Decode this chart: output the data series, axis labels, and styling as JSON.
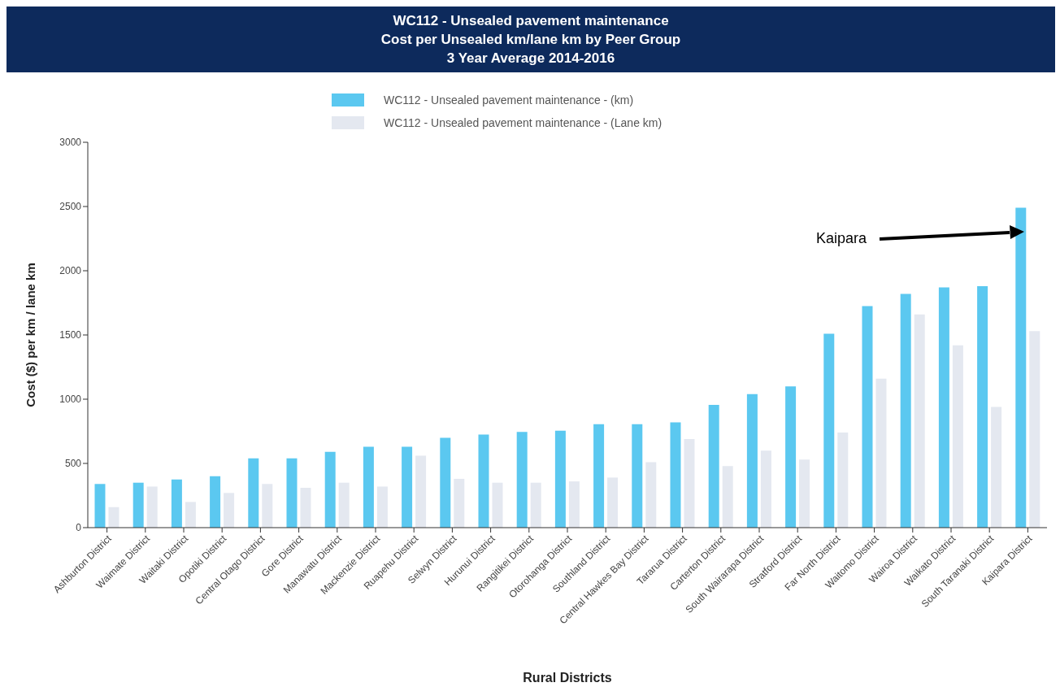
{
  "chart_data": {
    "type": "bar",
    "title": "WC112 - Unsealed pavement maintenance",
    "subtitle": "Cost per Unsealed km/lane km by Peer Group\n3 Year Average 2014-2016",
    "xlabel": "Rural Districts",
    "ylabel": "Cost ($) per km / lane km",
    "categories": [
      "Ashburton District",
      "Waimate District",
      "Waitaki District",
      "Opotiki District",
      "Central Otago District",
      "Gore District",
      "Manawatu District",
      "Mackenzie District",
      "Ruapehu District",
      "Selwyn District",
      "Hurunui District",
      "Rangitikei District",
      "Otorohanga District",
      "Southland District",
      "Central Hawkes Bay District",
      "Tararua District",
      "Carterton District",
      "South Wairarapa District",
      "Stratford District",
      "Far North District",
      "Waitomo District",
      "Wairoa District",
      "Waikato District",
      "South Taranaki District",
      "Kaipara District"
    ],
    "series": [
      {
        "name": "WC112 - Unsealed pavement maintenance - (km)",
        "color": "#5bc8f0",
        "values": [
          340,
          350,
          375,
          400,
          540,
          540,
          590,
          630,
          630,
          700,
          725,
          745,
          755,
          805,
          805,
          820,
          955,
          1040,
          1100,
          1510,
          1725,
          1820,
          1870,
          1880,
          2490
        ]
      },
      {
        "name": "WC112 - Unsealed pavement maintenance - (Lane km)",
        "color": "#e4e8f0",
        "values": [
          160,
          320,
          200,
          270,
          340,
          310,
          350,
          320,
          560,
          380,
          350,
          350,
          360,
          390,
          510,
          690,
          480,
          600,
          530,
          740,
          1160,
          1660,
          1420,
          940,
          1530
        ]
      }
    ],
    "ylim": [
      0,
      3000
    ],
    "yticks": [
      0,
      500,
      1000,
      1500,
      2000,
      2500,
      3000
    ],
    "grid": false,
    "legend": "top",
    "annotations": [
      "Kaipara"
    ]
  }
}
